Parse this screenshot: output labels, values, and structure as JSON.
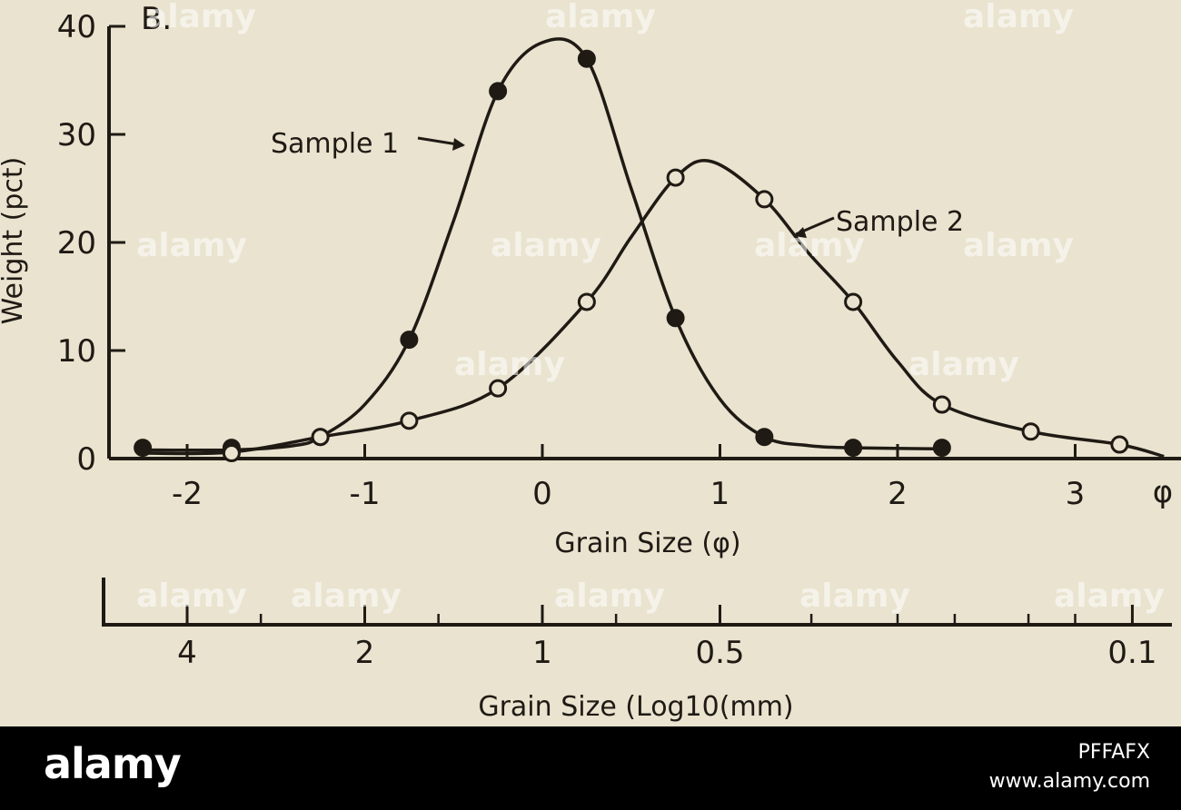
{
  "chart_data": {
    "type": "line",
    "panel_label": "B.",
    "xlabel": "Grain Size (φ)",
    "ylabel": "Weight (pct)",
    "x_unit_label": "φ",
    "xlim": [
      -2.3,
      3.8
    ],
    "ylim": [
      0,
      40
    ],
    "x_ticks": [
      -2,
      -1,
      0,
      1,
      2,
      3
    ],
    "x_tick_labels": [
      "-2",
      "-1",
      "0",
      "1",
      "2",
      "3"
    ],
    "y_ticks": [
      0,
      10,
      20,
      30,
      40
    ],
    "y_tick_labels": [
      "0",
      "10",
      "20",
      "30",
      "40"
    ],
    "secondary_axis": {
      "xlabel": "Grain Size (Log10(mm)",
      "ticks_mm": [
        4,
        2,
        1,
        0.5,
        0.1
      ],
      "tick_labels": [
        "4",
        "2",
        "1",
        "0.5",
        "0.1"
      ],
      "minor_ticks_mm": [
        3,
        1.5,
        0.75,
        0.35,
        0.25,
        0.2,
        0.15,
        0.125
      ]
    },
    "series": [
      {
        "name": "Sample 1",
        "marker": "filled-circle",
        "x": [
          -2.25,
          -1.75,
          -1.25,
          -0.75,
          -0.25,
          0.25,
          0.75,
          1.25,
          1.75,
          2.25
        ],
        "y": [
          1.0,
          1.0,
          2.0,
          11.0,
          34.0,
          37.0,
          13.0,
          2.0,
          1.0,
          1.0
        ],
        "curve_x": [
          -2.25,
          -1.75,
          -1.4,
          -1.25,
          -1.0,
          -0.75,
          -0.5,
          -0.25,
          0.0,
          0.25,
          0.5,
          0.75,
          1.0,
          1.25,
          1.5,
          1.75,
          2.25
        ],
        "curve_y": [
          0.8,
          0.8,
          1.2,
          2.0,
          5.0,
          11.0,
          22.0,
          34.0,
          38.5,
          37.0,
          25.0,
          13.0,
          5.5,
          2.0,
          1.2,
          1.0,
          0.9
        ]
      },
      {
        "name": "Sample 2",
        "marker": "open-circle",
        "x": [
          -1.75,
          -1.25,
          -0.75,
          -0.25,
          0.25,
          0.75,
          1.25,
          1.75,
          2.25,
          2.75,
          3.25
        ],
        "y": [
          0.5,
          2.0,
          3.5,
          6.5,
          14.5,
          26.0,
          24.0,
          14.5,
          5.0,
          2.5,
          1.3
        ],
        "curve_x": [
          -2.25,
          -1.75,
          -1.25,
          -0.75,
          -0.25,
          0.25,
          0.5,
          0.75,
          0.95,
          1.25,
          1.5,
          1.75,
          2.0,
          2.25,
          2.75,
          3.25,
          3.5
        ],
        "curve_y": [
          0.5,
          0.6,
          2.0,
          3.5,
          6.5,
          14.5,
          20.5,
          26.0,
          27.5,
          24.0,
          19.0,
          14.5,
          9.0,
          5.0,
          2.5,
          1.3,
          0.2
        ]
      }
    ]
  },
  "watermarks": [
    "alamy",
    "alamy",
    "alamy",
    "alamy",
    "alamy",
    "alamy",
    "alamy",
    "alamy",
    "alamy",
    "alamy",
    "alamy",
    "alamy",
    "alamy",
    "alamy"
  ],
  "footer": {
    "brand": "alamy",
    "image_id": "PFFAFX",
    "site": "www.alamy.com"
  },
  "colors": {
    "background": "#e9e3cf",
    "ink": "#1f1a14",
    "footer": "#000000"
  }
}
